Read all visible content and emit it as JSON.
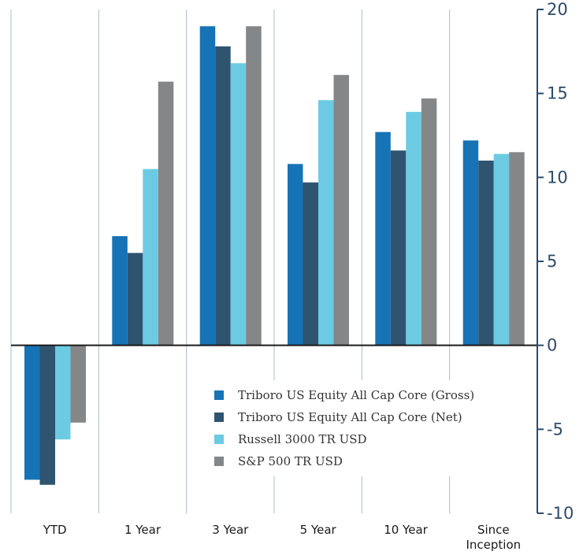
{
  "chart_data": {
    "type": "bar",
    "categories": [
      "YTD",
      "1 Year",
      "3 Year",
      "5 Year",
      "10 Year",
      "Since Inception"
    ],
    "category_lines": [
      [
        "YTD"
      ],
      [
        "1 Year"
      ],
      [
        "3 Year"
      ],
      [
        "5 Year"
      ],
      [
        "10 Year"
      ],
      [
        "Since",
        "Inception"
      ]
    ],
    "series": [
      {
        "name": "Triboro US Equity All Cap Core (Gross)",
        "color": "#1673b5",
        "values": [
          -8.0,
          6.5,
          19.0,
          10.8,
          12.7,
          12.2
        ]
      },
      {
        "name": "Triboro US Equity All Cap Core (Net)",
        "color": "#2e5470",
        "values": [
          -8.3,
          5.5,
          17.8,
          9.7,
          11.6,
          11.0
        ]
      },
      {
        "name": "Russell 3000 TR USD",
        "color": "#6ccbe2",
        "values": [
          -5.6,
          10.5,
          16.8,
          14.6,
          13.9,
          11.4
        ]
      },
      {
        "name": "S&P 500 TR USD",
        "color": "#848688",
        "values": [
          -4.6,
          15.7,
          19.0,
          16.1,
          14.7,
          11.5
        ]
      }
    ],
    "ylim": [
      -10,
      20
    ],
    "yticks": [
      20,
      15,
      10,
      5,
      0,
      -5,
      -10
    ],
    "ytick_labels": [
      "20",
      "15",
      "10",
      "5",
      "0",
      "-5",
      "-10"
    ],
    "y_axis_side": "right",
    "grid": "vertical category separators",
    "legend_position": "bottom-center, inside plot",
    "axis_color": "#2d4b68",
    "grid_color": "#a9bccb",
    "title": "",
    "xlabel": "",
    "ylabel": ""
  }
}
